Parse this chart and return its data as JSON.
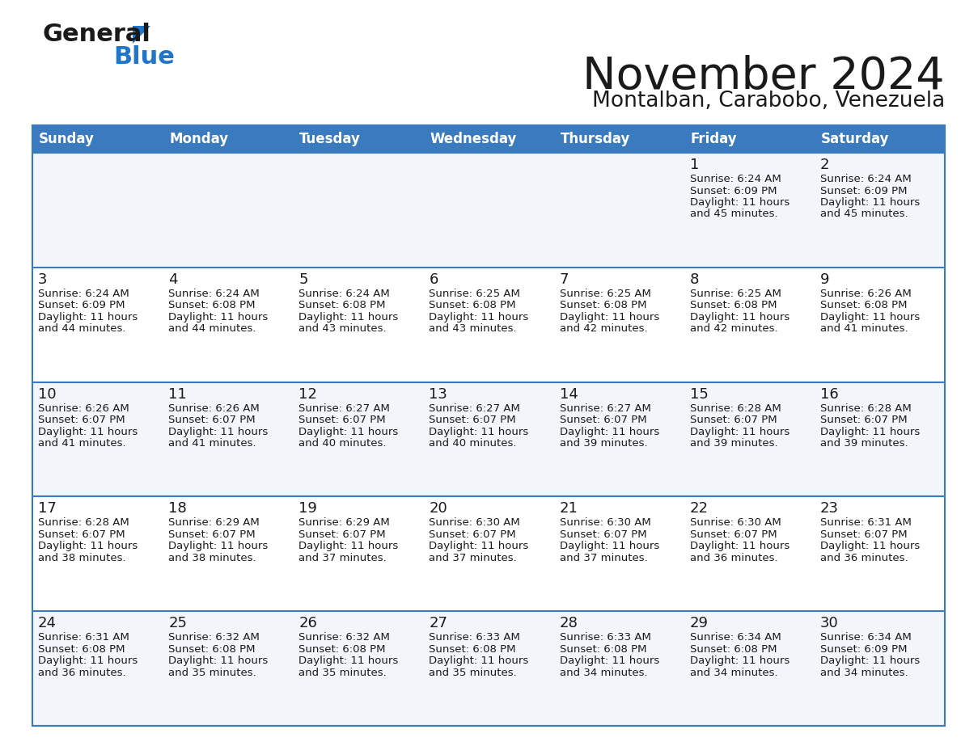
{
  "title": "November 2024",
  "subtitle": "Montalban, Carabobo, Venezuela",
  "header_color": "#3a7abf",
  "header_text_color": "#ffffff",
  "weekdays": [
    "Sunday",
    "Monday",
    "Tuesday",
    "Wednesday",
    "Thursday",
    "Friday",
    "Saturday"
  ],
  "background_color": "#ffffff",
  "row_bg_colors": [
    "#f2f5f9",
    "#ffffff",
    "#f2f5f9",
    "#ffffff",
    "#f2f5f9"
  ],
  "border_color": "#3a7abf",
  "days": [
    {
      "day": 1,
      "col": 5,
      "row": 0,
      "sunrise": "6:24 AM",
      "sunset": "6:09 PM",
      "daylight_h": "11 hours",
      "daylight_m": "and 45 minutes."
    },
    {
      "day": 2,
      "col": 6,
      "row": 0,
      "sunrise": "6:24 AM",
      "sunset": "6:09 PM",
      "daylight_h": "11 hours",
      "daylight_m": "and 45 minutes."
    },
    {
      "day": 3,
      "col": 0,
      "row": 1,
      "sunrise": "6:24 AM",
      "sunset": "6:09 PM",
      "daylight_h": "11 hours",
      "daylight_m": "and 44 minutes."
    },
    {
      "day": 4,
      "col": 1,
      "row": 1,
      "sunrise": "6:24 AM",
      "sunset": "6:08 PM",
      "daylight_h": "11 hours",
      "daylight_m": "and 44 minutes."
    },
    {
      "day": 5,
      "col": 2,
      "row": 1,
      "sunrise": "6:24 AM",
      "sunset": "6:08 PM",
      "daylight_h": "11 hours",
      "daylight_m": "and 43 minutes."
    },
    {
      "day": 6,
      "col": 3,
      "row": 1,
      "sunrise": "6:25 AM",
      "sunset": "6:08 PM",
      "daylight_h": "11 hours",
      "daylight_m": "and 43 minutes."
    },
    {
      "day": 7,
      "col": 4,
      "row": 1,
      "sunrise": "6:25 AM",
      "sunset": "6:08 PM",
      "daylight_h": "11 hours",
      "daylight_m": "and 42 minutes."
    },
    {
      "day": 8,
      "col": 5,
      "row": 1,
      "sunrise": "6:25 AM",
      "sunset": "6:08 PM",
      "daylight_h": "11 hours",
      "daylight_m": "and 42 minutes."
    },
    {
      "day": 9,
      "col": 6,
      "row": 1,
      "sunrise": "6:26 AM",
      "sunset": "6:08 PM",
      "daylight_h": "11 hours",
      "daylight_m": "and 41 minutes."
    },
    {
      "day": 10,
      "col": 0,
      "row": 2,
      "sunrise": "6:26 AM",
      "sunset": "6:07 PM",
      "daylight_h": "11 hours",
      "daylight_m": "and 41 minutes."
    },
    {
      "day": 11,
      "col": 1,
      "row": 2,
      "sunrise": "6:26 AM",
      "sunset": "6:07 PM",
      "daylight_h": "11 hours",
      "daylight_m": "and 41 minutes."
    },
    {
      "day": 12,
      "col": 2,
      "row": 2,
      "sunrise": "6:27 AM",
      "sunset": "6:07 PM",
      "daylight_h": "11 hours",
      "daylight_m": "and 40 minutes."
    },
    {
      "day": 13,
      "col": 3,
      "row": 2,
      "sunrise": "6:27 AM",
      "sunset": "6:07 PM",
      "daylight_h": "11 hours",
      "daylight_m": "and 40 minutes."
    },
    {
      "day": 14,
      "col": 4,
      "row": 2,
      "sunrise": "6:27 AM",
      "sunset": "6:07 PM",
      "daylight_h": "11 hours",
      "daylight_m": "and 39 minutes."
    },
    {
      "day": 15,
      "col": 5,
      "row": 2,
      "sunrise": "6:28 AM",
      "sunset": "6:07 PM",
      "daylight_h": "11 hours",
      "daylight_m": "and 39 minutes."
    },
    {
      "day": 16,
      "col": 6,
      "row": 2,
      "sunrise": "6:28 AM",
      "sunset": "6:07 PM",
      "daylight_h": "11 hours",
      "daylight_m": "and 39 minutes."
    },
    {
      "day": 17,
      "col": 0,
      "row": 3,
      "sunrise": "6:28 AM",
      "sunset": "6:07 PM",
      "daylight_h": "11 hours",
      "daylight_m": "and 38 minutes."
    },
    {
      "day": 18,
      "col": 1,
      "row": 3,
      "sunrise": "6:29 AM",
      "sunset": "6:07 PM",
      "daylight_h": "11 hours",
      "daylight_m": "and 38 minutes."
    },
    {
      "day": 19,
      "col": 2,
      "row": 3,
      "sunrise": "6:29 AM",
      "sunset": "6:07 PM",
      "daylight_h": "11 hours",
      "daylight_m": "and 37 minutes."
    },
    {
      "day": 20,
      "col": 3,
      "row": 3,
      "sunrise": "6:30 AM",
      "sunset": "6:07 PM",
      "daylight_h": "11 hours",
      "daylight_m": "and 37 minutes."
    },
    {
      "day": 21,
      "col": 4,
      "row": 3,
      "sunrise": "6:30 AM",
      "sunset": "6:07 PM",
      "daylight_h": "11 hours",
      "daylight_m": "and 37 minutes."
    },
    {
      "day": 22,
      "col": 5,
      "row": 3,
      "sunrise": "6:30 AM",
      "sunset": "6:07 PM",
      "daylight_h": "11 hours",
      "daylight_m": "and 36 minutes."
    },
    {
      "day": 23,
      "col": 6,
      "row": 3,
      "sunrise": "6:31 AM",
      "sunset": "6:07 PM",
      "daylight_h": "11 hours",
      "daylight_m": "and 36 minutes."
    },
    {
      "day": 24,
      "col": 0,
      "row": 4,
      "sunrise": "6:31 AM",
      "sunset": "6:08 PM",
      "daylight_h": "11 hours",
      "daylight_m": "and 36 minutes."
    },
    {
      "day": 25,
      "col": 1,
      "row": 4,
      "sunrise": "6:32 AM",
      "sunset": "6:08 PM",
      "daylight_h": "11 hours",
      "daylight_m": "and 35 minutes."
    },
    {
      "day": 26,
      "col": 2,
      "row": 4,
      "sunrise": "6:32 AM",
      "sunset": "6:08 PM",
      "daylight_h": "11 hours",
      "daylight_m": "and 35 minutes."
    },
    {
      "day": 27,
      "col": 3,
      "row": 4,
      "sunrise": "6:33 AM",
      "sunset": "6:08 PM",
      "daylight_h": "11 hours",
      "daylight_m": "and 35 minutes."
    },
    {
      "day": 28,
      "col": 4,
      "row": 4,
      "sunrise": "6:33 AM",
      "sunset": "6:08 PM",
      "daylight_h": "11 hours",
      "daylight_m": "and 34 minutes."
    },
    {
      "day": 29,
      "col": 5,
      "row": 4,
      "sunrise": "6:34 AM",
      "sunset": "6:08 PM",
      "daylight_h": "11 hours",
      "daylight_m": "and 34 minutes."
    },
    {
      "day": 30,
      "col": 6,
      "row": 4,
      "sunrise": "6:34 AM",
      "sunset": "6:09 PM",
      "daylight_h": "11 hours",
      "daylight_m": "and 34 minutes."
    }
  ]
}
